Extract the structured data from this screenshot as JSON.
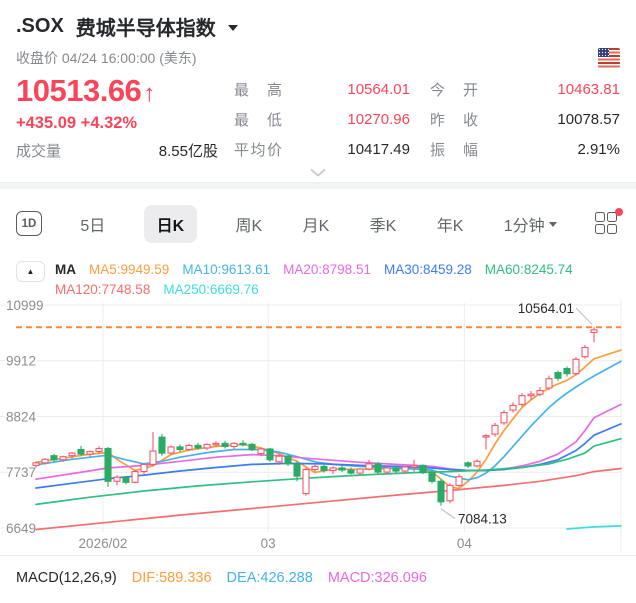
{
  "header": {
    "symbol": ".SOX",
    "name": "费城半导体指数",
    "subtitle": "收盘价 04/24 16:00:00 (美东)",
    "flag": "us-flag"
  },
  "quote": {
    "price": "10513.66",
    "arrow": "↑",
    "change": "+435.09 +4.32%",
    "volume_label": "成交量",
    "volume_value": "8.55亿股",
    "stats": [
      {
        "label": "最高",
        "value": "10564.01",
        "color": "up"
      },
      {
        "label": "今开",
        "value": "10463.81",
        "color": "up"
      },
      {
        "label": "最低",
        "value": "10270.96",
        "color": "up"
      },
      {
        "label": "昨收",
        "value": "10078.57",
        "color": "neutral"
      },
      {
        "label": "平均价",
        "value": "10417.49",
        "color": "neutral"
      },
      {
        "label": "振幅",
        "value": "2.91%",
        "color": "neutral"
      }
    ]
  },
  "tabs": {
    "period_icon": "1D",
    "items": [
      "5日",
      "日K",
      "周K",
      "月K",
      "季K",
      "年K"
    ],
    "active": "日K",
    "minute_label": "1分钟",
    "grid_icon": "chart-layout-grid",
    "grid_badge_color": "#f8455a"
  },
  "ma_legend": {
    "title": "MA",
    "items": [
      {
        "text": "MA5:9949.59",
        "color": "#fb9e3e"
      },
      {
        "text": "MA10:9613.61",
        "color": "#45b3e8"
      },
      {
        "text": "MA20:8798.51",
        "color": "#e76ae2"
      },
      {
        "text": "MA30:8459.28",
        "color": "#3d7bf2"
      },
      {
        "text": "MA60:8245.74",
        "color": "#2fbf81"
      },
      {
        "text": "MA120:7748.58",
        "color": "#f56e6e"
      },
      {
        "text": "MA250:6669.76",
        "color": "#3fdede"
      }
    ]
  },
  "chart_data": {
    "type": "candlestick",
    "title": ".SOX daily K-line",
    "y_ticks": [
      10999,
      9912,
      8824,
      7737,
      6649
    ],
    "x_ticks": [
      {
        "label": "2026/02",
        "i": 7.44
      },
      {
        "label": "03",
        "i": 25.8
      },
      {
        "label": "04",
        "i": 47.6
      }
    ],
    "colors": {
      "up": "#f4586b",
      "down": "#2bab67",
      "dashed": "#f98a3d",
      "grid": "#ececee",
      "tick_text": "#8b8e93",
      "annotation": "#26282c",
      "connector": "#b9bcc0"
    },
    "high_line": {
      "value": 10564.01,
      "label": "10564.01",
      "candle": 62
    },
    "low_label": {
      "value": 7084.13,
      "label": "7084.13",
      "candle": 45
    },
    "candles": [
      [
        7870,
        7940,
        7830,
        7920
      ],
      [
        7920,
        8010,
        7890,
        7990
      ],
      [
        8060,
        8090,
        7950,
        7980
      ],
      [
        7980,
        8060,
        7940,
        8040
      ],
      [
        8060,
        8130,
        8000,
        8110
      ],
      [
        8180,
        8250,
        8060,
        8090
      ],
      [
        8090,
        8160,
        8040,
        8140
      ],
      [
        8140,
        8240,
        8100,
        8200
      ],
      [
        8200,
        8230,
        7450,
        7560
      ],
      [
        7560,
        7680,
        7480,
        7640
      ],
      [
        7640,
        7660,
        7500,
        7540
      ],
      [
        7540,
        7780,
        7520,
        7750
      ],
      [
        7750,
        7920,
        7700,
        7890
      ],
      [
        7890,
        8520,
        7860,
        8150
      ],
      [
        8420,
        8480,
        8060,
        8110
      ],
      [
        8110,
        8260,
        8080,
        8230
      ],
      [
        8230,
        8280,
        8130,
        8180
      ],
      [
        8180,
        8290,
        8150,
        8260
      ],
      [
        8260,
        8310,
        8180,
        8210
      ],
      [
        8210,
        8300,
        8170,
        8280
      ],
      [
        8280,
        8340,
        8230,
        8300
      ],
      [
        8300,
        8350,
        8200,
        8240
      ],
      [
        8240,
        8320,
        8190,
        8300
      ],
      [
        8300,
        8360,
        8240,
        8280
      ],
      [
        8280,
        8310,
        8150,
        8180
      ],
      [
        8100,
        8220,
        8050,
        8190
      ],
      [
        8190,
        8210,
        7940,
        7980
      ],
      [
        7940,
        8100,
        7880,
        8050
      ],
      [
        8050,
        8080,
        7860,
        7900
      ],
      [
        7900,
        7950,
        7560,
        7660
      ],
      [
        7320,
        7820,
        7280,
        7790
      ],
      [
        7790,
        7900,
        7740,
        7850
      ],
      [
        7850,
        7880,
        7730,
        7770
      ],
      [
        7770,
        7850,
        7700,
        7820
      ],
      [
        7820,
        7870,
        7740,
        7780
      ],
      [
        7780,
        7830,
        7690,
        7720
      ],
      [
        7720,
        7820,
        7680,
        7800
      ],
      [
        7800,
        7980,
        7770,
        7900
      ],
      [
        7900,
        7940,
        7700,
        7740
      ],
      [
        7740,
        7850,
        7690,
        7820
      ],
      [
        7820,
        7870,
        7720,
        7760
      ],
      [
        7760,
        7860,
        7710,
        7840
      ],
      [
        7840,
        7980,
        7750,
        7870
      ],
      [
        7870,
        7890,
        7700,
        7730
      ],
      [
        7730,
        7780,
        7520,
        7560
      ],
      [
        7560,
        7600,
        7084,
        7160
      ],
      [
        7180,
        7520,
        7130,
        7480
      ],
      [
        7480,
        7700,
        7450,
        7650
      ],
      [
        7920,
        7950,
        7820,
        7860
      ],
      [
        7860,
        7990,
        7830,
        7950
      ],
      [
        8440,
        8480,
        8180,
        8450
      ],
      [
        8480,
        8700,
        8430,
        8650
      ],
      [
        8700,
        8950,
        8660,
        8900
      ],
      [
        8950,
        9100,
        8900,
        9040
      ],
      [
        9060,
        9280,
        9020,
        9230
      ],
      [
        9230,
        9320,
        9150,
        9260
      ],
      [
        9260,
        9400,
        9220,
        9330
      ],
      [
        9380,
        9620,
        9340,
        9560
      ],
      [
        9680,
        9720,
        9520,
        9570
      ],
      [
        9760,
        9800,
        9600,
        9660
      ],
      [
        9660,
        9980,
        9630,
        9940
      ],
      [
        9990,
        10220,
        9950,
        10170
      ],
      [
        10464,
        10564,
        10271,
        10514
      ]
    ],
    "ma_lines": [
      {
        "name": "MA5",
        "color": "#fb9e3e",
        "points": [
          [
            0,
            7930
          ],
          [
            3,
            8010
          ],
          [
            6,
            8090
          ],
          [
            8,
            8120
          ],
          [
            9,
            7990
          ],
          [
            11,
            7770
          ],
          [
            13,
            7860
          ],
          [
            15,
            8080
          ],
          [
            17,
            8170
          ],
          [
            20,
            8240
          ],
          [
            23,
            8280
          ],
          [
            25,
            8210
          ],
          [
            27,
            8100
          ],
          [
            29,
            7950
          ],
          [
            31,
            7730
          ],
          [
            33,
            7800
          ],
          [
            36,
            7790
          ],
          [
            39,
            7810
          ],
          [
            42,
            7810
          ],
          [
            44,
            7750
          ],
          [
            46,
            7450
          ],
          [
            47,
            7420
          ],
          [
            48,
            7560
          ],
          [
            49,
            7740
          ],
          [
            50,
            7990
          ],
          [
            51,
            8290
          ],
          [
            52,
            8550
          ],
          [
            53,
            8780
          ],
          [
            54,
            9000
          ],
          [
            55,
            9150
          ],
          [
            56,
            9270
          ],
          [
            57,
            9380
          ],
          [
            58,
            9460
          ],
          [
            59,
            9530
          ],
          [
            60,
            9640
          ],
          [
            61,
            9790
          ],
          [
            62,
            9950
          ],
          [
            65,
            10120
          ]
        ]
      },
      {
        "name": "MA10",
        "color": "#45b3e8",
        "points": [
          [
            0,
            7880
          ],
          [
            4,
            7990
          ],
          [
            8,
            8070
          ],
          [
            10,
            7980
          ],
          [
            12,
            7900
          ],
          [
            14,
            7950
          ],
          [
            16,
            8030
          ],
          [
            19,
            8120
          ],
          [
            22,
            8180
          ],
          [
            25,
            8180
          ],
          [
            27,
            8130
          ],
          [
            29,
            8040
          ],
          [
            31,
            7940
          ],
          [
            33,
            7890
          ],
          [
            36,
            7850
          ],
          [
            39,
            7820
          ],
          [
            42,
            7800
          ],
          [
            44,
            7780
          ],
          [
            46,
            7660
          ],
          [
            48,
            7590
          ],
          [
            49,
            7630
          ],
          [
            50,
            7720
          ],
          [
            51,
            7860
          ],
          [
            52,
            8040
          ],
          [
            53,
            8240
          ],
          [
            54,
            8440
          ],
          [
            55,
            8640
          ],
          [
            56,
            8820
          ],
          [
            57,
            9000
          ],
          [
            58,
            9150
          ],
          [
            59,
            9280
          ],
          [
            60,
            9400
          ],
          [
            61,
            9510
          ],
          [
            62,
            9614
          ],
          [
            65,
            9900
          ]
        ]
      },
      {
        "name": "MA20",
        "color": "#e76ae2",
        "points": [
          [
            0,
            7600
          ],
          [
            4,
            7710
          ],
          [
            8,
            7820
          ],
          [
            12,
            7870
          ],
          [
            16,
            7950
          ],
          [
            20,
            8030
          ],
          [
            24,
            8080
          ],
          [
            27,
            8060
          ],
          [
            30,
            8010
          ],
          [
            33,
            7970
          ],
          [
            36,
            7930
          ],
          [
            39,
            7900
          ],
          [
            42,
            7870
          ],
          [
            44,
            7850
          ],
          [
            46,
            7800
          ],
          [
            48,
            7770
          ],
          [
            50,
            7770
          ],
          [
            52,
            7800
          ],
          [
            54,
            7860
          ],
          [
            56,
            7950
          ],
          [
            58,
            8090
          ],
          [
            60,
            8330
          ],
          [
            61,
            8550
          ],
          [
            62,
            8798
          ],
          [
            65,
            9060
          ]
        ]
      },
      {
        "name": "MA30",
        "color": "#3d7bf2",
        "points": [
          [
            0,
            7430
          ],
          [
            4,
            7520
          ],
          [
            8,
            7610
          ],
          [
            12,
            7680
          ],
          [
            16,
            7760
          ],
          [
            20,
            7830
          ],
          [
            24,
            7890
          ],
          [
            28,
            7910
          ],
          [
            32,
            7900
          ],
          [
            36,
            7870
          ],
          [
            40,
            7850
          ],
          [
            44,
            7820
          ],
          [
            46,
            7790
          ],
          [
            48,
            7770
          ],
          [
            50,
            7770
          ],
          [
            52,
            7790
          ],
          [
            54,
            7830
          ],
          [
            56,
            7890
          ],
          [
            58,
            7980
          ],
          [
            60,
            8160
          ],
          [
            61,
            8300
          ],
          [
            62,
            8459
          ],
          [
            65,
            8680
          ]
        ]
      },
      {
        "name": "MA60",
        "color": "#2fbf81",
        "points": [
          [
            0,
            7110
          ],
          [
            6,
            7250
          ],
          [
            12,
            7370
          ],
          [
            18,
            7470
          ],
          [
            24,
            7550
          ],
          [
            30,
            7620
          ],
          [
            36,
            7680
          ],
          [
            42,
            7730
          ],
          [
            46,
            7750
          ],
          [
            50,
            7780
          ],
          [
            54,
            7830
          ],
          [
            57,
            7900
          ],
          [
            59,
            7990
          ],
          [
            61,
            8110
          ],
          [
            62,
            8246
          ],
          [
            65,
            8390
          ]
        ]
      },
      {
        "name": "MA120",
        "color": "#f56e6e",
        "points": [
          [
            0,
            6620
          ],
          [
            8,
            6760
          ],
          [
            16,
            6900
          ],
          [
            24,
            7030
          ],
          [
            32,
            7160
          ],
          [
            40,
            7290
          ],
          [
            46,
            7380
          ],
          [
            52,
            7480
          ],
          [
            56,
            7560
          ],
          [
            60,
            7670
          ],
          [
            62,
            7749
          ],
          [
            65,
            7810
          ]
        ]
      },
      {
        "name": "MA250",
        "color": "#3fdede",
        "points": [
          [
            59,
            6630
          ],
          [
            62,
            6670
          ],
          [
            65,
            6690
          ]
        ]
      }
    ]
  },
  "macd": {
    "title": "MACD(12,26,9)",
    "items": [
      {
        "text": "DIF:589.336",
        "color": "#fb9e3e"
      },
      {
        "text": "DEA:426.288",
        "color": "#45b3e8"
      },
      {
        "text": "MACD:326.096",
        "color": "#e76ae2"
      }
    ]
  }
}
